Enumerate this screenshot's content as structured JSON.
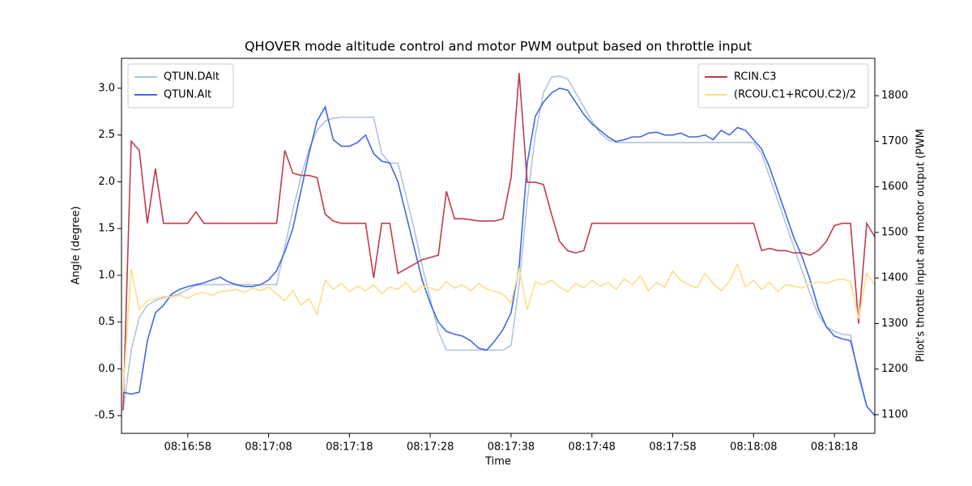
{
  "chart_data": {
    "type": "line",
    "title": "QHOVER mode altitude control and motor PWM output based on throttle input",
    "xlabel": "Time",
    "ylabel": "Angle (degree)",
    "y2label": "Pilot's throttle input and motor output (PWM",
    "x": [
      29810,
      29811,
      29812,
      29813,
      29814,
      29815,
      29816,
      29817,
      29818,
      29819,
      29820,
      29821,
      29822,
      29823,
      29824,
      29825,
      29826,
      29827,
      29828,
      29829,
      29830,
      29831,
      29832,
      29833,
      29834,
      29835,
      29836,
      29837,
      29838,
      29839,
      29840,
      29841,
      29842,
      29843,
      29844,
      29845,
      29846,
      29847,
      29848,
      29849,
      29850,
      29851,
      29852,
      29853,
      29854,
      29855,
      29856,
      29857,
      29858,
      29859,
      29860,
      29861,
      29862,
      29863,
      29864,
      29865,
      29866,
      29867,
      29868,
      29869,
      29870,
      29871,
      29872,
      29873,
      29874,
      29875,
      29876,
      29877,
      29878,
      29879,
      29880,
      29881,
      29882,
      29883,
      29884,
      29885,
      29886,
      29887,
      29888,
      29889,
      29890,
      29891,
      29892,
      29893,
      29894,
      29895,
      29896,
      29897,
      29898,
      29899,
      29900,
      29901,
      29902,
      29903
    ],
    "xlim": [
      29809.8,
      29903
    ],
    "xticks": [
      {
        "value": 29818,
        "label": "08:16:58"
      },
      {
        "value": 29828,
        "label": "08:17:08"
      },
      {
        "value": 29838,
        "label": "08:17:18"
      },
      {
        "value": 29848,
        "label": "08:17:28"
      },
      {
        "value": 29858,
        "label": "08:17:38"
      },
      {
        "value": 29868,
        "label": "08:17:48"
      },
      {
        "value": 29878,
        "label": "08:17:58"
      },
      {
        "value": 29888,
        "label": "08:18:08"
      },
      {
        "value": 29898,
        "label": "08:18:18"
      }
    ],
    "ylim": [
      -0.69,
      3.32
    ],
    "yticks": [
      -0.5,
      {
        "value": 0,
        "label": "0.0"
      },
      0.5,
      {
        "value": 1,
        "label": "1.0"
      },
      1.5,
      {
        "value": 2,
        "label": "2.0"
      },
      2.5,
      {
        "value": 3,
        "label": "3.0"
      }
    ],
    "y2lim": [
      1059,
      1882
    ],
    "y2ticks": [
      1100,
      1200,
      1300,
      1400,
      1500,
      1600,
      1700,
      1800
    ],
    "legend": {
      "y": "upper left",
      "y2": "upper right"
    },
    "series": [
      {
        "name": "QTUN.DAlt",
        "color": "#b0c4de",
        "axis": "y",
        "values": [
          -0.45,
          0.2,
          0.55,
          0.68,
          0.73,
          0.76,
          0.78,
          0.8,
          0.85,
          0.89,
          0.9,
          0.9,
          0.9,
          0.9,
          0.9,
          0.9,
          0.9,
          0.9,
          0.9,
          0.9,
          1.3,
          1.7,
          2.05,
          2.35,
          2.55,
          2.65,
          2.68,
          2.69,
          2.69,
          2.69,
          2.69,
          2.69,
          2.3,
          2.2,
          2.2,
          1.85,
          1.5,
          1.1,
          0.75,
          0.4,
          0.2,
          0.2,
          0.2,
          0.2,
          0.2,
          0.2,
          0.2,
          0.2,
          0.25,
          0.9,
          1.8,
          2.5,
          2.95,
          3.12,
          3.13,
          3.1,
          2.95,
          2.8,
          2.65,
          2.52,
          2.45,
          2.42,
          2.42,
          2.42,
          2.42,
          2.42,
          2.42,
          2.42,
          2.42,
          2.42,
          2.42,
          2.42,
          2.42,
          2.42,
          2.42,
          2.42,
          2.42,
          2.42,
          2.42,
          2.3,
          2.05,
          1.8,
          1.55,
          1.3,
          1.05,
          0.8,
          0.58,
          0.45,
          0.4,
          0.37,
          0.36,
          -0.1,
          -0.4,
          -0.5
        ]
      },
      {
        "name": "QTUN.Alt",
        "color": "#4169e1",
        "axis": "y",
        "values": [
          -0.25,
          -0.27,
          -0.25,
          0.3,
          0.6,
          0.68,
          0.8,
          0.85,
          0.88,
          0.9,
          0.92,
          0.95,
          0.98,
          0.93,
          0.9,
          0.88,
          0.88,
          0.9,
          0.95,
          1.05,
          1.25,
          1.5,
          1.9,
          2.3,
          2.65,
          2.8,
          2.45,
          2.38,
          2.38,
          2.42,
          2.5,
          2.3,
          2.22,
          2.2,
          2.0,
          1.65,
          1.3,
          0.95,
          0.7,
          0.5,
          0.4,
          0.37,
          0.35,
          0.3,
          0.22,
          0.2,
          0.3,
          0.42,
          0.6,
          1.1,
          2.2,
          2.7,
          2.85,
          2.95,
          3.0,
          2.98,
          2.85,
          2.72,
          2.62,
          2.55,
          2.48,
          2.43,
          2.45,
          2.48,
          2.48,
          2.52,
          2.53,
          2.5,
          2.5,
          2.52,
          2.48,
          2.48,
          2.5,
          2.45,
          2.55,
          2.5,
          2.58,
          2.55,
          2.45,
          2.35,
          2.15,
          1.9,
          1.65,
          1.4,
          1.2,
          0.95,
          0.65,
          0.45,
          0.35,
          0.32,
          0.3,
          -0.05,
          -0.4,
          -0.5
        ]
      },
      {
        "name": "RCIN.C3",
        "color": "#c23b4b",
        "axis": "y2",
        "values": [
          1110,
          1700,
          1680,
          1520,
          1640,
          1520,
          1520,
          1520,
          1520,
          1545,
          1520,
          1520,
          1520,
          1520,
          1520,
          1520,
          1520,
          1520,
          1520,
          1520,
          1680,
          1630,
          1625,
          1625,
          1620,
          1540,
          1525,
          1520,
          1520,
          1520,
          1520,
          1400,
          1520,
          1520,
          1410,
          1420,
          1430,
          1440,
          1445,
          1450,
          1590,
          1530,
          1530,
          1528,
          1525,
          1525,
          1525,
          1530,
          1620,
          1850,
          1610,
          1610,
          1605,
          1540,
          1480,
          1460,
          1455,
          1460,
          1520,
          1520,
          1520,
          1520,
          1520,
          1520,
          1520,
          1520,
          1520,
          1520,
          1520,
          1520,
          1520,
          1520,
          1520,
          1520,
          1520,
          1520,
          1520,
          1520,
          1520,
          1460,
          1465,
          1460,
          1460,
          1455,
          1455,
          1450,
          1460,
          1480,
          1515,
          1520,
          1520,
          1300,
          1520,
          1490
        ]
      },
      {
        "name": "(RCOU.C1+RCOU.C2)/2",
        "color": "#ffdd88",
        "axis": "y2",
        "values": [
          1150,
          1420,
          1330,
          1350,
          1355,
          1360,
          1358,
          1362,
          1355,
          1365,
          1368,
          1362,
          1370,
          1372,
          1375,
          1368,
          1378,
          1372,
          1380,
          1365,
          1350,
          1372,
          1340,
          1355,
          1320,
          1395,
          1375,
          1388,
          1370,
          1382,
          1372,
          1385,
          1365,
          1380,
          1375,
          1390,
          1368,
          1382,
          1378,
          1372,
          1392,
          1378,
          1385,
          1372,
          1388,
          1375,
          1370,
          1365,
          1345,
          1420,
          1330,
          1392,
          1385,
          1395,
          1380,
          1370,
          1388,
          1378,
          1395,
          1382,
          1390,
          1375,
          1398,
          1385,
          1405,
          1372,
          1390,
          1380,
          1415,
          1395,
          1385,
          1378,
          1410,
          1388,
          1372,
          1392,
          1430,
          1380,
          1395,
          1375,
          1390,
          1370,
          1385,
          1382,
          1378,
          1386,
          1392,
          1388,
          1395,
          1398,
          1392,
          1310,
          1410,
          1385
        ]
      }
    ]
  }
}
